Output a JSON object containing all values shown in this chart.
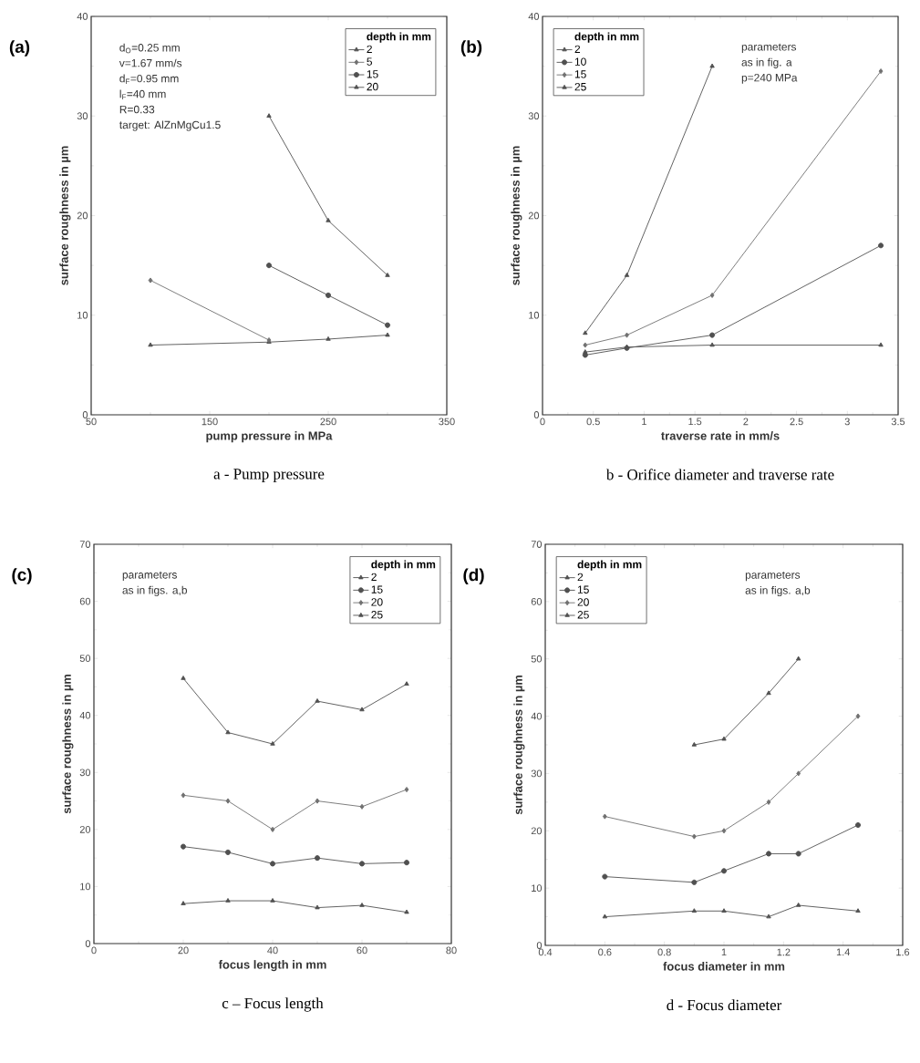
{
  "chart_data": [
    {
      "type": "line",
      "title": "a - Pump pressure",
      "subtitle": "(a)",
      "xlabel": "pump pressure in MPa",
      "ylabel": "surface roughness in µm",
      "legend_title": "depth in mm",
      "legend": "top right",
      "annotations": [
        "d$_{O}$=0.25 mm",
        "v=1.67 mm/s",
        "d$_{F}$=0.95 mm",
        "l$_{F}$=40 mm",
        "R=0.33",
        "target: AlZnMgCu1.5"
      ],
      "xlim": [
        50,
        350
      ],
      "xticks": [
        50,
        150,
        250,
        350
      ],
      "ylim": [
        0,
        40
      ],
      "yticks": [
        0,
        10,
        20,
        30,
        40
      ],
      "series": [
        {
          "name": "2",
          "color": "#505050",
          "marker": "triangle",
          "x": [
            100,
            200,
            250,
            300
          ],
          "values": [
            7,
            7.3,
            7.6,
            8
          ]
        },
        {
          "name": "5",
          "color": "#707070",
          "marker": "diamond",
          "x": [
            100,
            200
          ],
          "values": [
            13.5,
            7.5
          ]
        },
        {
          "name": "15",
          "color": "#505050",
          "marker": "circle",
          "x": [
            200,
            250,
            300
          ],
          "values": [
            15,
            12,
            9
          ]
        },
        {
          "name": "20",
          "color": "#505050",
          "marker": "triangle",
          "x": [
            200,
            250,
            300
          ],
          "values": [
            30,
            19.5,
            14
          ]
        }
      ]
    },
    {
      "type": "line",
      "title": "b - Orifice diameter and traverse rate",
      "subtitle": "(b)",
      "xlabel": "traverse rate in mm/s",
      "ylabel": "surface roughness in µm",
      "legend_title": "depth in mm",
      "legend": "top left",
      "annotations": [
        "parameters",
        "as in fig. a",
        "p=240 MPa"
      ],
      "xlim": [
        0,
        3.5
      ],
      "xticks": [
        0,
        0.5,
        1,
        1.5,
        2,
        2.5,
        3,
        3.5
      ],
      "ylim": [
        0,
        40
      ],
      "yticks": [
        0,
        10,
        20,
        30,
        40
      ],
      "series": [
        {
          "name": "2",
          "color": "#505050",
          "marker": "triangle",
          "x": [
            0.42,
            0.83,
            1.67,
            3.33
          ],
          "values": [
            6.3,
            6.8,
            7,
            7
          ]
        },
        {
          "name": "10",
          "color": "#505050",
          "marker": "circle",
          "x": [
            0.42,
            0.83,
            1.67,
            3.33
          ],
          "values": [
            6,
            6.7,
            8,
            17
          ]
        },
        {
          "name": "15",
          "color": "#707070",
          "marker": "diamond",
          "x": [
            0.42,
            0.83,
            1.67,
            3.33
          ],
          "values": [
            7,
            8,
            12,
            34.5
          ]
        },
        {
          "name": "25",
          "color": "#505050",
          "marker": "triangle",
          "x": [
            0.42,
            0.83,
            1.67
          ],
          "values": [
            8.2,
            14,
            35
          ]
        }
      ]
    },
    {
      "type": "line",
      "title": "c – Focus length",
      "subtitle": "(c)",
      "xlabel": "focus length in mm",
      "ylabel": "surface roughness in µm",
      "legend_title": "depth in mm",
      "legend": "top right",
      "annotations": [
        "parameters",
        "as in figs. a,b"
      ],
      "xlim": [
        0,
        80
      ],
      "xticks": [
        0,
        20,
        40,
        60,
        80
      ],
      "ylim": [
        0,
        70
      ],
      "yticks": [
        0,
        10,
        20,
        30,
        40,
        50,
        60,
        70
      ],
      "series": [
        {
          "name": "2",
          "color": "#505050",
          "marker": "triangle",
          "x": [
            20,
            30,
            40,
            50,
            60,
            70
          ],
          "values": [
            7,
            7.5,
            7.5,
            6.3,
            6.7,
            5.5
          ]
        },
        {
          "name": "15",
          "color": "#505050",
          "marker": "circle",
          "x": [
            20,
            30,
            40,
            50,
            60,
            70
          ],
          "values": [
            17,
            16,
            14,
            15,
            14,
            14.2
          ]
        },
        {
          "name": "20",
          "color": "#707070",
          "marker": "diamond",
          "x": [
            20,
            30,
            40,
            50,
            60,
            70
          ],
          "values": [
            26,
            25,
            20,
            25,
            24,
            27
          ]
        },
        {
          "name": "25",
          "color": "#505050",
          "marker": "triangle",
          "x": [
            20,
            30,
            40,
            50,
            60,
            70
          ],
          "values": [
            46.5,
            37,
            35,
            42.5,
            41,
            45.5
          ]
        }
      ]
    },
    {
      "type": "line",
      "title": "d - Focus diameter",
      "subtitle": "(d)",
      "xlabel": "focus diameter in mm",
      "ylabel": "surface roughness in µm",
      "legend_title": "depth in mm",
      "legend": "top left",
      "annotations": [
        "parameters",
        "as in figs. a,b"
      ],
      "xlim": [
        0.4,
        1.6
      ],
      "xticks": [
        0.4,
        0.6,
        0.8,
        1,
        1.2,
        1.4,
        1.6
      ],
      "ylim": [
        0,
        70
      ],
      "yticks": [
        0,
        10,
        20,
        30,
        40,
        50,
        60,
        70
      ],
      "series": [
        {
          "name": "2",
          "color": "#505050",
          "marker": "triangle",
          "x": [
            0.6,
            0.9,
            1,
            1.15,
            1.25,
            1.45
          ],
          "values": [
            5,
            6,
            6,
            5,
            7,
            6
          ]
        },
        {
          "name": "15",
          "color": "#505050",
          "marker": "circle",
          "x": [
            0.6,
            0.9,
            1,
            1.15,
            1.25,
            1.45
          ],
          "values": [
            12,
            11,
            13,
            16,
            16,
            21
          ]
        },
        {
          "name": "20",
          "color": "#707070",
          "marker": "diamond",
          "x": [
            0.6,
            0.9,
            1,
            1.15,
            1.25,
            1.45
          ],
          "values": [
            22.5,
            19,
            20,
            25,
            30,
            40
          ]
        },
        {
          "name": "25",
          "color": "#505050",
          "marker": "triangle",
          "x": [
            0.9,
            1,
            1.15,
            1.25
          ],
          "values": [
            35,
            36,
            44,
            50
          ]
        }
      ]
    }
  ]
}
